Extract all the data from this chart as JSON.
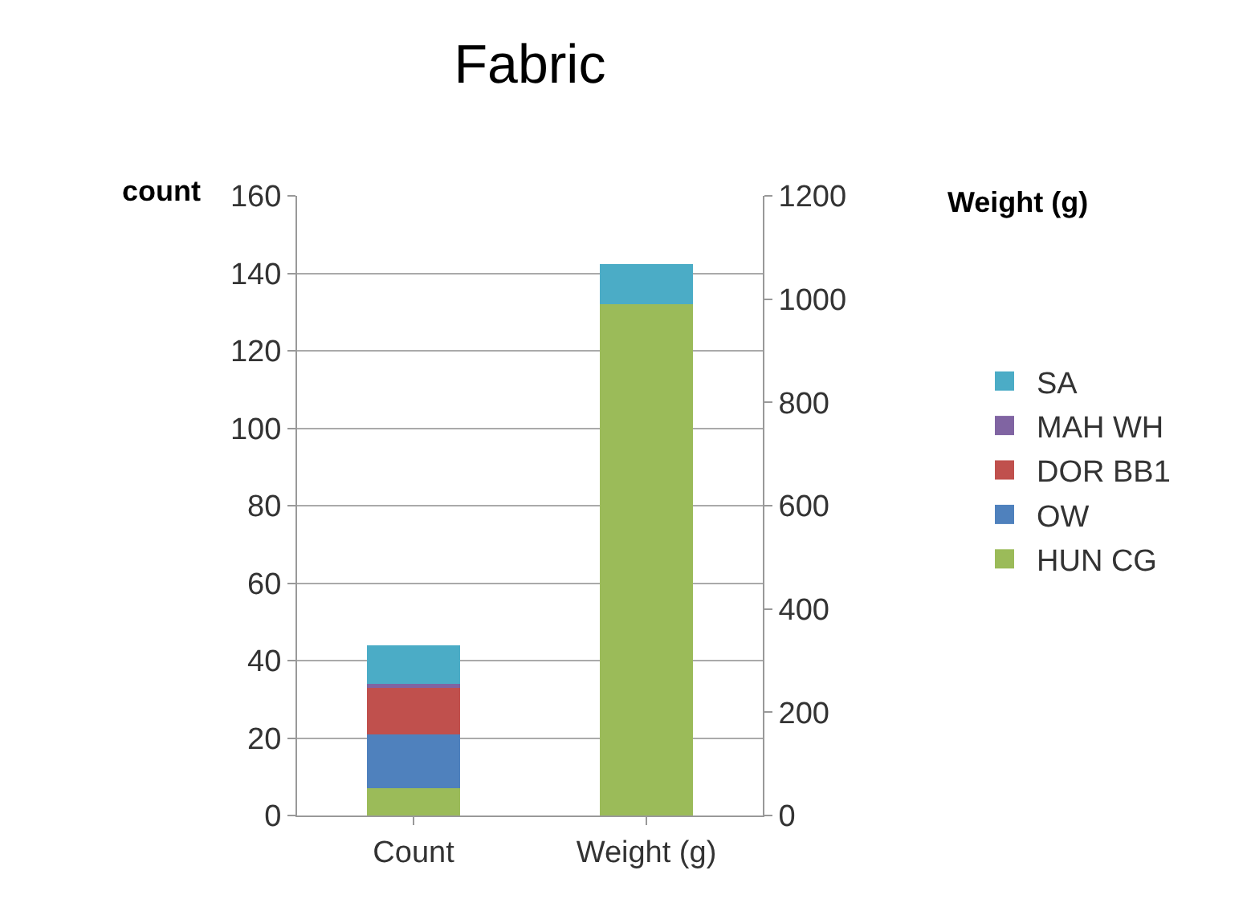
{
  "chart_data": {
    "type": "bar",
    "title": "Fabric",
    "ylabel": "count",
    "y2label": "Weight (g)",
    "stacked": true,
    "categories": [
      "Count",
      "Weight (g)"
    ],
    "series": [
      {
        "name": "HUN CG",
        "color": "#9bbb59",
        "values": [
          7,
          null
        ]
      },
      {
        "name": "OW",
        "color": "#4f81bd",
        "values": [
          14,
          null
        ]
      },
      {
        "name": "DOR BB1",
        "color": "#c0504d",
        "values": [
          12,
          null
        ]
      },
      {
        "name": "MAH WH",
        "color": "#8064a2",
        "values": [
          1,
          null
        ]
      },
      {
        "name": "SA",
        "color": "#4bacc6",
        "values": [
          10,
          null
        ]
      },
      {
        "color": "#9bbb59",
        "values": [
          null,
          990
        ],
        "axis": "y2"
      },
      {
        "color": "#4bacc6",
        "values": [
          null,
          78
        ],
        "axis": "y2"
      }
    ],
    "ylim": [
      0,
      160
    ],
    "yticks": [
      0,
      20,
      40,
      60,
      80,
      100,
      120,
      140,
      160
    ],
    "y2lim": [
      0,
      1200
    ],
    "y2ticks": [
      0,
      200,
      400,
      600,
      800,
      1000,
      1200
    ],
    "grid": "y",
    "legend": "right"
  }
}
